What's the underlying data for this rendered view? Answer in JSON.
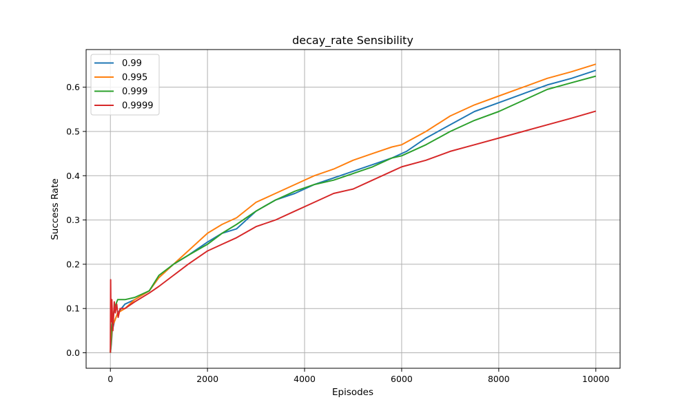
{
  "chart_data": {
    "type": "line",
    "title": "decay_rate Sensibility",
    "xlabel": "Episodes",
    "ylabel": "Success Rate",
    "xlim": [
      -500,
      10500
    ],
    "ylim": [
      -0.035,
      0.685
    ],
    "xticks": [
      0,
      2000,
      4000,
      6000,
      8000,
      10000
    ],
    "yticks": [
      0.0,
      0.1,
      0.2,
      0.3,
      0.4,
      0.5,
      0.6
    ],
    "xtick_labels": [
      "0",
      "2000",
      "4000",
      "6000",
      "8000",
      "10000"
    ],
    "ytick_labels": [
      "0.0",
      "0.1",
      "0.2",
      "0.3",
      "0.4",
      "0.5",
      "0.6"
    ],
    "grid": true,
    "legend_position": "top-left",
    "series": [
      {
        "name": "0.99",
        "color": "#1f77b4",
        "x": [
          0,
          20,
          40,
          80,
          150,
          300,
          500,
          800,
          1000,
          1300,
          1600,
          2000,
          2300,
          2600,
          3000,
          3400,
          3800,
          4200,
          4600,
          5000,
          5400,
          5800,
          6100,
          6500,
          7000,
          7500,
          8000,
          8500,
          9000,
          9500,
          10000
        ],
        "y": [
          0.0,
          0.02,
          0.05,
          0.07,
          0.09,
          0.11,
          0.12,
          0.14,
          0.17,
          0.2,
          0.22,
          0.25,
          0.27,
          0.28,
          0.32,
          0.345,
          0.36,
          0.38,
          0.395,
          0.41,
          0.425,
          0.44,
          0.455,
          0.485,
          0.515,
          0.545,
          0.565,
          0.585,
          0.605,
          0.62,
          0.638
        ]
      },
      {
        "name": "0.995",
        "color": "#ff7f0e",
        "x": [
          0,
          20,
          40,
          80,
          150,
          300,
          500,
          800,
          1000,
          1300,
          1600,
          2000,
          2300,
          2600,
          3000,
          3400,
          3800,
          4200,
          4600,
          5000,
          5400,
          5800,
          6000,
          6500,
          7000,
          7500,
          8000,
          8500,
          9000,
          9500,
          10000
        ],
        "y": [
          0.0,
          0.03,
          0.06,
          0.07,
          0.09,
          0.1,
          0.12,
          0.14,
          0.17,
          0.2,
          0.23,
          0.27,
          0.29,
          0.305,
          0.34,
          0.36,
          0.38,
          0.4,
          0.415,
          0.435,
          0.45,
          0.465,
          0.47,
          0.5,
          0.535,
          0.56,
          0.58,
          0.6,
          0.62,
          0.635,
          0.652
        ]
      },
      {
        "name": "0.999",
        "color": "#2ca02c",
        "x": [
          0,
          20,
          40,
          80,
          150,
          300,
          500,
          800,
          1000,
          1300,
          1600,
          2000,
          2300,
          2600,
          3000,
          3400,
          3800,
          4200,
          4600,
          5000,
          5400,
          5800,
          6000,
          6500,
          7000,
          7500,
          8000,
          8500,
          9000,
          9500,
          10000
        ],
        "y": [
          0.0,
          0.05,
          0.07,
          0.1,
          0.12,
          0.12,
          0.125,
          0.14,
          0.175,
          0.2,
          0.22,
          0.245,
          0.27,
          0.29,
          0.32,
          0.345,
          0.365,
          0.38,
          0.39,
          0.405,
          0.42,
          0.44,
          0.445,
          0.47,
          0.5,
          0.525,
          0.545,
          0.57,
          0.595,
          0.61,
          0.625
        ]
      },
      {
        "name": "0.9999",
        "color": "#d62728",
        "x": [
          0,
          5,
          10,
          20,
          30,
          50,
          80,
          100,
          130,
          160,
          200,
          300,
          500,
          800,
          1000,
          1300,
          1600,
          2000,
          2300,
          2600,
          3000,
          3400,
          3800,
          4200,
          4600,
          5000,
          5400,
          5800,
          6000,
          6500,
          7000,
          7500,
          8000,
          8500,
          9000,
          9500,
          10000
        ],
        "y": [
          0.0,
          0.165,
          0.1,
          0.07,
          0.12,
          0.05,
          0.115,
          0.09,
          0.11,
          0.08,
          0.1,
          0.1,
          0.115,
          0.135,
          0.15,
          0.175,
          0.2,
          0.23,
          0.245,
          0.26,
          0.285,
          0.3,
          0.32,
          0.34,
          0.36,
          0.37,
          0.39,
          0.41,
          0.42,
          0.435,
          0.455,
          0.47,
          0.485,
          0.5,
          0.515,
          0.53,
          0.546
        ]
      }
    ]
  }
}
